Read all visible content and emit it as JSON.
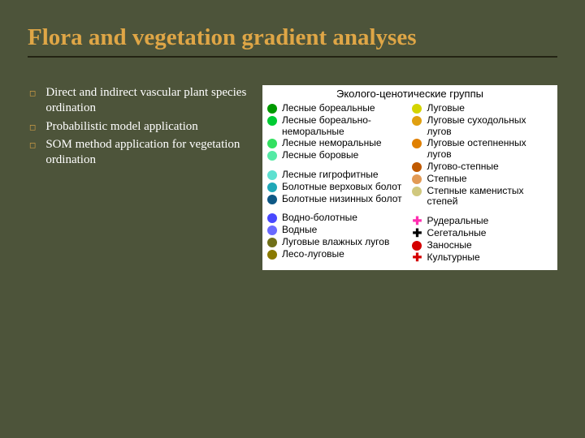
{
  "slide": {
    "title": "Flora and vegetation gradient analyses",
    "title_color": "#dfa646",
    "rule_color": "#232313",
    "background": "#4d543a"
  },
  "bullets": [
    "Direct and indirect vascular plant species ordination",
    "Probabilistic model application",
    "SOM method application for vegetation ordination"
  ],
  "legend": {
    "panel_bg": "#ffffff",
    "title": "Эколого-ценотические группы",
    "left": [
      {
        "label": "Лесные бореальные",
        "color": "#009900",
        "shape": "circle"
      },
      {
        "label": "Лесные бореально-неморальные",
        "color": "#00cc33",
        "shape": "circle"
      },
      {
        "label": "Лесные неморальные",
        "color": "#33e060",
        "shape": "circle"
      },
      {
        "label": "Лесные боровые",
        "color": "#55eaa5",
        "shape": "circle"
      },
      {
        "gap": true
      },
      {
        "label": "Лесные гигрофитные",
        "color": "#5de0d0",
        "shape": "circle"
      },
      {
        "label": "Болотные верховых болот",
        "color": "#1fa8b8",
        "shape": "circle"
      },
      {
        "label": "Болотные низинных болот",
        "color": "#0e5885",
        "shape": "circle"
      },
      {
        "gap": true
      },
      {
        "label": "Водно-болотные",
        "color": "#4848ff",
        "shape": "circle"
      },
      {
        "label": "Водные",
        "color": "#6a6aff",
        "shape": "circle"
      },
      {
        "label": "Луговые влажных лугов",
        "color": "#707018",
        "shape": "circle"
      },
      {
        "label": "Лесо-луговые",
        "color": "#8a7a00",
        "shape": "circle"
      }
    ],
    "right": [
      {
        "label": "Луговые",
        "color": "#d4d400",
        "shape": "circle"
      },
      {
        "label": "Луговые суходольных лугов",
        "color": "#e0a010",
        "shape": "circle"
      },
      {
        "label": "Луговые остепненных лугов",
        "color": "#e08000",
        "shape": "circle"
      },
      {
        "label": "Лугово-степные",
        "color": "#c05a00",
        "shape": "circle"
      },
      {
        "label": "Степные",
        "color": "#e29a55",
        "shape": "circle"
      },
      {
        "label": "Степные каменистых степей",
        "color": "#d0c87e",
        "shape": "circle"
      },
      {
        "gap": true
      },
      {
        "label": "Рудеральные",
        "color": "#ff2db0",
        "shape": "plus"
      },
      {
        "label": "Сегетальные",
        "color": "#000000",
        "shape": "plus"
      },
      {
        "label": "Заносные",
        "color": "#d40000",
        "shape": "circle"
      },
      {
        "label": "Культурные",
        "color": "#d40000",
        "shape": "plus"
      }
    ]
  }
}
